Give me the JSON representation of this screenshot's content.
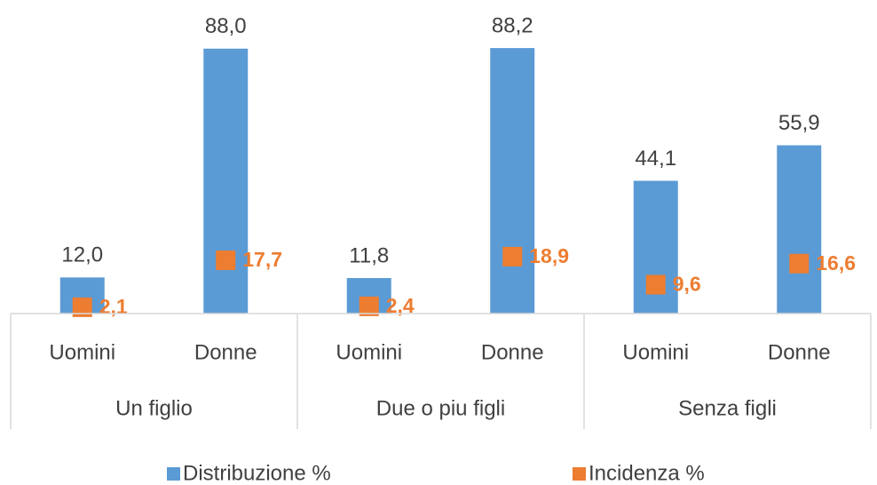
{
  "chart_data": {
    "type": "bar",
    "categories": [
      "Uomini",
      "Donne",
      "Uomini",
      "Donne",
      "Uomini",
      "Donne"
    ],
    "groups": [
      "Un figlio",
      "Due o piu figli",
      "Senza figli"
    ],
    "series": [
      {
        "name": "Distribuzione %",
        "color": "#5b9bd5",
        "values": [
          12.0,
          88.0,
          11.8,
          88.2,
          44.1,
          55.9
        ],
        "value_labels": [
          "12,0",
          "88,0",
          "11,8",
          "88,2",
          "44,1",
          "55,9"
        ]
      },
      {
        "name": "Incidenza %",
        "color": "#ed7d31",
        "marker": "square",
        "values": [
          2.1,
          17.7,
          2.4,
          18.9,
          9.6,
          16.6
        ],
        "value_labels": [
          "2,1",
          "17,7",
          "2,4",
          "18,9",
          "9,6",
          "16,6"
        ]
      }
    ],
    "ylim": [
      0,
      90
    ],
    "grid": false,
    "legend": "bottom"
  }
}
